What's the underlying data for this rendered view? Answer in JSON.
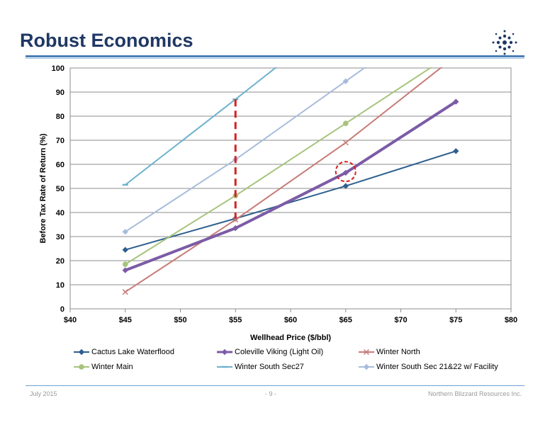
{
  "slide": {
    "title": "Robust Economics",
    "footer_left": "July 2015",
    "footer_center": "- 9 -",
    "footer_right": "Northern Blizzard Resources Inc."
  },
  "chart_data": {
    "type": "line",
    "xlabel": "Wellhead Price ($/bbl)",
    "ylabel": "Before Tax Rate of Return (%)",
    "xlim": [
      40,
      80
    ],
    "ylim": [
      0,
      100
    ],
    "x_ticks": [
      40,
      45,
      50,
      55,
      60,
      65,
      70,
      75,
      80
    ],
    "x_tick_labels": [
      "$40",
      "$45",
      "$50",
      "$55",
      "$60",
      "$65",
      "$70",
      "$75",
      "$80"
    ],
    "y_ticks": [
      0,
      10,
      20,
      30,
      40,
      50,
      60,
      70,
      80,
      90,
      100
    ],
    "y_tick_labels": [
      "0",
      "10",
      "20",
      "30",
      "40",
      "50",
      "60",
      "70",
      "80",
      "90",
      "100"
    ],
    "grid": "horizontal",
    "legend_position": "bottom",
    "series": [
      {
        "name": "Cactus Lake Waterflood",
        "color": "#2e5f8e",
        "marker": "diamond",
        "width": 2,
        "x": [
          45,
          55,
          65,
          75
        ],
        "y": [
          24.5,
          37.5,
          51,
          65.5
        ]
      },
      {
        "name": "Coleville Viking (Light Oil)",
        "color": "#7b5ba6",
        "marker": "diamond",
        "width": 4,
        "x": [
          45,
          55,
          65,
          75
        ],
        "y": [
          16,
          33.5,
          56.5,
          86
        ]
      },
      {
        "name": "Winter North",
        "color": "#c77b78",
        "marker": "x",
        "width": 2,
        "x": [
          45,
          55,
          65,
          75
        ],
        "y": [
          7,
          37,
          69,
          105
        ]
      },
      {
        "name": "Winter Main",
        "color": "#a6c47c",
        "marker": "circle",
        "width": 2,
        "x": [
          45,
          55,
          65,
          75
        ],
        "y": [
          18.5,
          47,
          77,
          107
        ]
      },
      {
        "name": "Winter South Sec27",
        "color": "#6eb3cc",
        "marker": "dash",
        "width": 2,
        "x": [
          45,
          55,
          65
        ],
        "y": [
          51.5,
          87,
          123
        ]
      },
      {
        "name": "Winter South Sec 21&22 w/ Facility",
        "color": "#a8bcdc",
        "marker": "diamond",
        "width": 2,
        "x": [
          45,
          55,
          65,
          75
        ],
        "y": [
          32,
          62,
          94.5,
          127
        ]
      }
    ],
    "annotations": [
      {
        "type": "dashed-vertical-line",
        "color": "#d62020",
        "x": 55,
        "y_from": 37.5,
        "y_to": 87
      },
      {
        "type": "dashed-circle",
        "color": "#d62020",
        "x": 65,
        "y": 57
      }
    ]
  },
  "colors": {
    "title": "#1f3864",
    "rule": "#4a7fb5",
    "footer_text": "#9a9a9a"
  }
}
